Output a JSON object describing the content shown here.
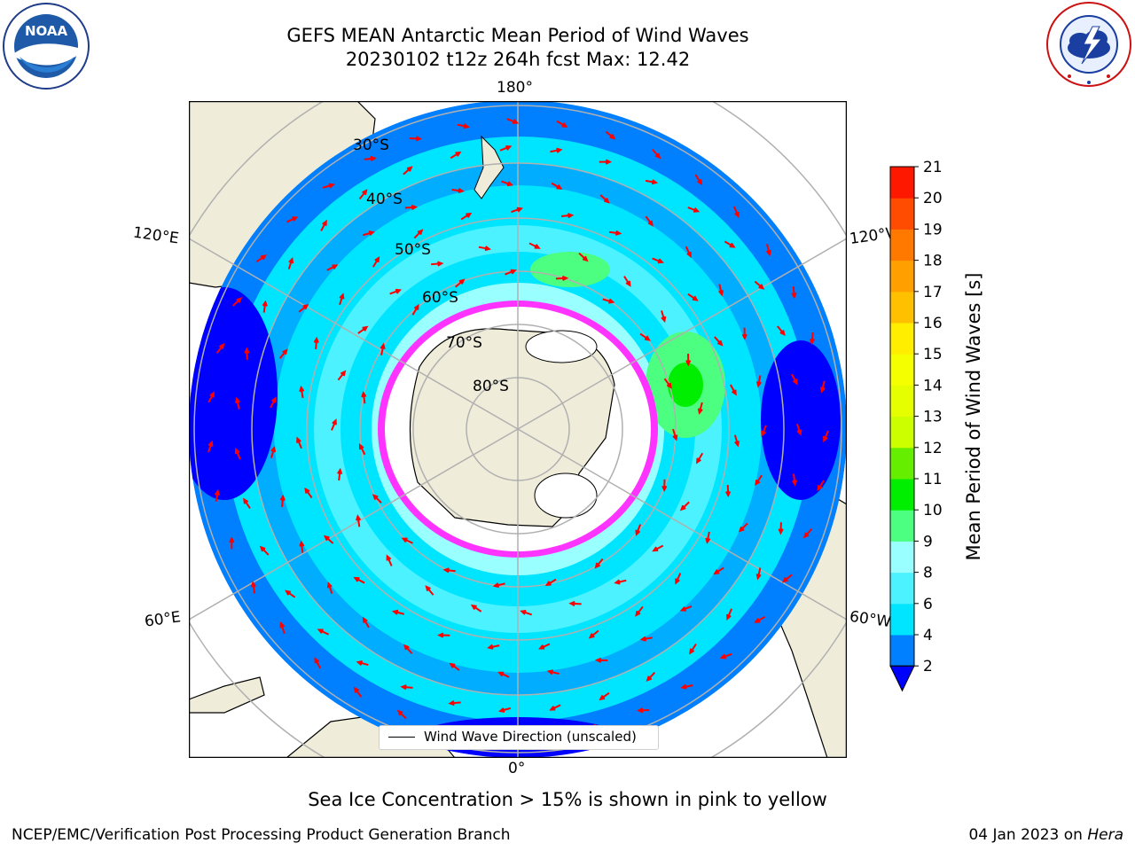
{
  "header": {
    "title_line1": "GEFS MEAN Antarctic Mean Period of Wind Waves",
    "title_line2": "20230102 t12z 264h fcst   Max: 12.42"
  },
  "logos": {
    "left": "NOAA",
    "right": "NATIONAL WEATHER SERVICE"
  },
  "map": {
    "projection": "south-polar-stereographic",
    "longitude_labels": [
      "180°",
      "120°E",
      "120°W",
      "60°E",
      "60°W",
      "0°"
    ],
    "latitude_labels": [
      "30°S",
      "40°S",
      "50°S",
      "60°S",
      "70°S",
      "80°S"
    ],
    "legend_text": "Wind Wave Direction (unscaled)",
    "arrow_color": "#ff0000",
    "land_color": "#efedda",
    "sea_ice_colors": [
      "#ff33ff",
      "#ffff66"
    ]
  },
  "colorbar": {
    "label": "Mean Period of Wind Waves [s]",
    "ticks": [
      "2",
      "4",
      "6",
      "8",
      "9",
      "10",
      "11",
      "12",
      "13",
      "14",
      "15",
      "16",
      "17",
      "18",
      "19",
      "20",
      "21"
    ],
    "bands": [
      {
        "from": 2,
        "to": 4,
        "color": "#0080ff"
      },
      {
        "from": 4,
        "to": 6,
        "color": "#00e5ff"
      },
      {
        "from": 6,
        "to": 8,
        "color": "#4cf2ff"
      },
      {
        "from": 8,
        "to": 9,
        "color": "#99ffff"
      },
      {
        "from": 9,
        "to": 10,
        "color": "#4dff80"
      },
      {
        "from": 10,
        "to": 11,
        "color": "#00ee00"
      },
      {
        "from": 11,
        "to": 12,
        "color": "#66ee00"
      },
      {
        "from": 12,
        "to": 13,
        "color": "#ccff00"
      },
      {
        "from": 13,
        "to": 14,
        "color": "#e6ff00"
      },
      {
        "from": 14,
        "to": 15,
        "color": "#f5ff00"
      },
      {
        "from": 15,
        "to": 16,
        "color": "#ffee00"
      },
      {
        "from": 16,
        "to": 17,
        "color": "#ffc000"
      },
      {
        "from": 17,
        "to": 18,
        "color": "#ffa000"
      },
      {
        "from": 18,
        "to": 19,
        "color": "#ff7800"
      },
      {
        "from": 19,
        "to": 20,
        "color": "#ff4c00"
      },
      {
        "from": 20,
        "to": 21,
        "color": "#ff1800"
      }
    ],
    "under_color": "#0000ff"
  },
  "subtitle": "Sea Ice Concentration > 15% is shown in pink to yellow",
  "footer": {
    "left": "NCEP/EMC/Verification Post Processing Product Generation Branch",
    "right_date": "04 Jan 2023 on ",
    "right_host": "Hera"
  }
}
